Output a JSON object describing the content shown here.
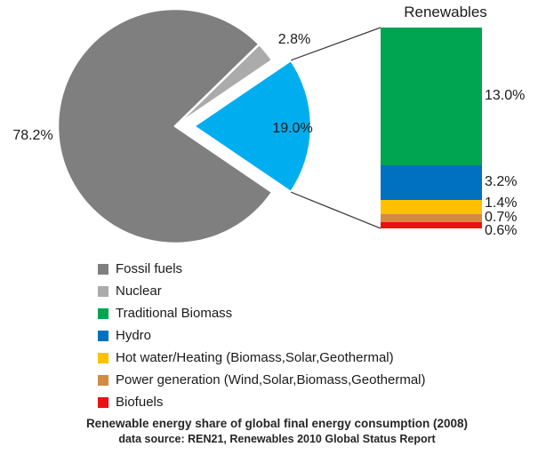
{
  "chart_data": [
    {
      "type": "pie",
      "title": "",
      "start_angle_deg": -34.2,
      "direction": "clockwise",
      "slices": [
        {
          "label": "Fossil fuels",
          "value": 78.2,
          "display": "78.2%",
          "color": "#7F7F7F",
          "exploded": false
        },
        {
          "label": "Nuclear",
          "value": 2.8,
          "display": "2.8%",
          "color": "#ABABAB",
          "exploded": false
        },
        {
          "label": "Renewables",
          "value": 19.0,
          "display": "19.0%",
          "color": "#00AEEF",
          "exploded": true
        }
      ]
    },
    {
      "type": "stacked-bar",
      "title": "Renewables",
      "total": 18.9,
      "segments": [
        {
          "label": "Traditional Biomass",
          "value": 13.0,
          "display": "13.0%",
          "color": "#00A551"
        },
        {
          "label": "Hydro",
          "value": 3.2,
          "display": "3.2%",
          "color": "#0070C0"
        },
        {
          "label": "Hot water/Heating (Biomass,Solar,Geothermal)",
          "value": 1.4,
          "display": "1.4%",
          "color": "#FFC000"
        },
        {
          "label": "Power generation (Wind,Solar,Biomass,Geothermal)",
          "value": 0.7,
          "display": "0.7%",
          "color": "#D28B43"
        },
        {
          "label": "Biofuels",
          "value": 0.6,
          "display": "0.6%",
          "color": "#EE1111"
        }
      ]
    }
  ],
  "legend": {
    "items": [
      {
        "label": "Fossil fuels",
        "color": "#7F7F7F"
      },
      {
        "label": "Nuclear",
        "color": "#ABABAB"
      },
      {
        "label": "Traditional Biomass",
        "color": "#00A551"
      },
      {
        "label": "Hydro",
        "color": "#0070C0"
      },
      {
        "label": "Hot water/Heating (Biomass,Solar,Geothermal)",
        "color": "#FFC000"
      },
      {
        "label": "Power generation (Wind,Solar,Biomass,Geothermal)",
        "color": "#D28B43"
      },
      {
        "label": "Biofuels",
        "color": "#EE1111"
      }
    ]
  },
  "caption": {
    "line1": "Renewable energy share of global final energy consumption (2008)",
    "line2": "data source: REN21, Renewables 2010 Global Status Report"
  },
  "connector_color": "#3f3f3f"
}
